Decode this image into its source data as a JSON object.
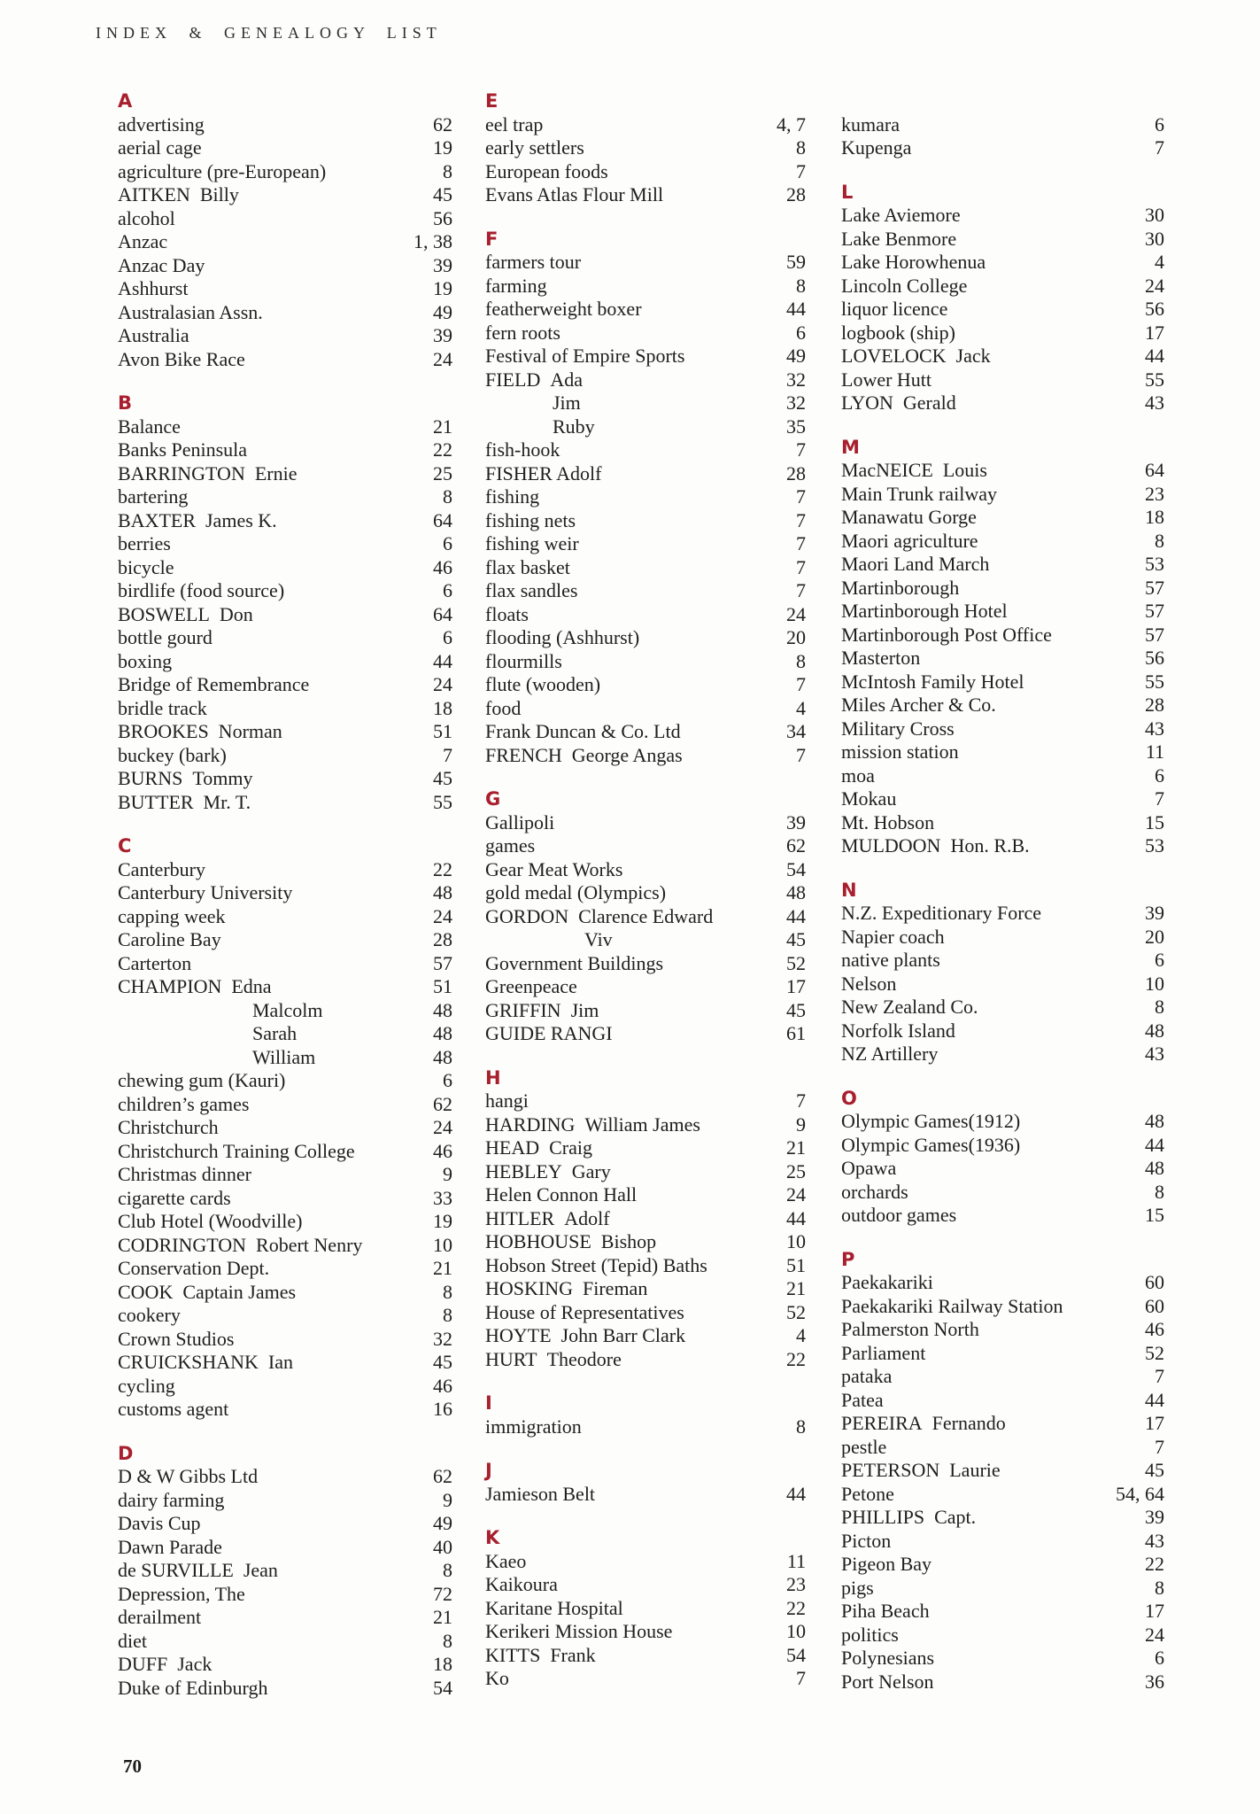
{
  "page": {
    "header": "INDEX & GENEALOGY LIST",
    "page_number": "70",
    "accent_color": "#a81f2e",
    "text_color": "#202020"
  },
  "columns": [
    {
      "sections": [
        {
          "letter": "A",
          "entries": [
            {
              "term": "advertising",
              "page": "62"
            },
            {
              "term": "aerial cage",
              "page": "19"
            },
            {
              "term": "agriculture (pre-European)",
              "page": "8"
            },
            {
              "term": "AITKEN Billy",
              "page": "45"
            },
            {
              "term": "alcohol",
              "page": "56"
            },
            {
              "term": "Anzac",
              "page": "1, 38"
            },
            {
              "term": "Anzac Day",
              "page": "39"
            },
            {
              "term": "Ashhurst",
              "page": "19"
            },
            {
              "term": "Australasian Assn.",
              "page": "49"
            },
            {
              "term": "Australia",
              "page": "39"
            },
            {
              "term": "Avon Bike Race",
              "page": "24"
            }
          ]
        },
        {
          "letter": "B",
          "entries": [
            {
              "term": "Balance",
              "page": "21"
            },
            {
              "term": "Banks Peninsula",
              "page": "22"
            },
            {
              "term": "BARRINGTON Ernie",
              "page": "25"
            },
            {
              "term": "bartering",
              "page": "8"
            },
            {
              "term": "BAXTER James K.",
              "page": "64"
            },
            {
              "term": "berries",
              "page": "6"
            },
            {
              "term": "bicycle",
              "page": "46"
            },
            {
              "term": "birdlife (food source)",
              "page": "6"
            },
            {
              "term": "BOSWELL Don",
              "page": "64"
            },
            {
              "term": "bottle gourd",
              "page": "6"
            },
            {
              "term": "boxing",
              "page": "44"
            },
            {
              "term": "Bridge of Remembrance",
              "page": "24"
            },
            {
              "term": "bridle track",
              "page": "18"
            },
            {
              "term": "BROOKES Norman",
              "page": "51"
            },
            {
              "term": "buckey (bark)",
              "page": "7"
            },
            {
              "term": "BURNS Tommy",
              "page": "45"
            },
            {
              "term": "BUTTER Mr. T.",
              "page": "55"
            }
          ]
        },
        {
          "letter": "C",
          "entries": [
            {
              "term": "Canterbury",
              "page": "22"
            },
            {
              "term": "Canterbury University",
              "page": "48"
            },
            {
              "term": "capping week",
              "page": "24"
            },
            {
              "term": "Caroline Bay",
              "page": "28"
            },
            {
              "term": "Carterton",
              "page": "57"
            },
            {
              "term": "CHAMPION Edna",
              "page": "51"
            },
            {
              "term": "Malcolm",
              "page": "48",
              "indent": 152
            },
            {
              "term": "Sarah",
              "page": "48",
              "indent": 152
            },
            {
              "term": "William",
              "page": "48",
              "indent": 152
            },
            {
              "term": "chewing gum (Kauri)",
              "page": "6"
            },
            {
              "term": "children’s games",
              "page": "62"
            },
            {
              "term": "Christchurch",
              "page": "24"
            },
            {
              "term": "Christchurch Training College",
              "page": "46"
            },
            {
              "term": "Christmas dinner",
              "page": "9"
            },
            {
              "term": "cigarette cards",
              "page": "33"
            },
            {
              "term": "Club Hotel (Woodville)",
              "page": "19"
            },
            {
              "term": "CODRINGTON Robert Nenry",
              "page": "10"
            },
            {
              "term": "Conservation Dept.",
              "page": "21"
            },
            {
              "term": "COOK Captain James",
              "page": "8"
            },
            {
              "term": "cookery",
              "page": "8"
            },
            {
              "term": "Crown Studios",
              "page": "32"
            },
            {
              "term": "CRUICKSHANK Ian",
              "page": "45"
            },
            {
              "term": "cycling",
              "page": "46"
            },
            {
              "term": "customs agent",
              "page": "16"
            }
          ]
        },
        {
          "letter": "D",
          "entries": [
            {
              "term": "D & W Gibbs Ltd",
              "page": "62"
            },
            {
              "term": "dairy farming",
              "page": "9"
            },
            {
              "term": "Davis Cup",
              "page": "49"
            },
            {
              "term": "Dawn Parade",
              "page": "40"
            },
            {
              "term": "de SURVILLE Jean",
              "page": "8"
            },
            {
              "term": "Depression, The",
              "page": "72"
            },
            {
              "term": "derailment",
              "page": "21"
            },
            {
              "term": "diet",
              "page": "8"
            },
            {
              "term": "DUFF Jack",
              "page": "18"
            },
            {
              "term": "Duke of Edinburgh",
              "page": "54"
            }
          ]
        }
      ]
    },
    {
      "sections": [
        {
          "letter": "E",
          "entries": [
            {
              "term": "eel trap",
              "page": "4, 7"
            },
            {
              "term": "early settlers",
              "page": "8"
            },
            {
              "term": "European foods",
              "page": "7"
            },
            {
              "term": "Evans Atlas Flour Mill",
              "page": "28"
            }
          ]
        },
        {
          "letter": "F",
          "entries": [
            {
              "term": "farmers tour",
              "page": "59"
            },
            {
              "term": "farming",
              "page": "8"
            },
            {
              "term": "featherweight boxer",
              "page": "44"
            },
            {
              "term": "fern roots",
              "page": "6"
            },
            {
              "term": "Festival of Empire Sports",
              "page": "49"
            },
            {
              "term": "FIELD Ada",
              "page": "32"
            },
            {
              "term": "Jim",
              "page": "32",
              "indent": 76
            },
            {
              "term": "Ruby",
              "page": "35",
              "indent": 76
            },
            {
              "term": "fish-hook",
              "page": "7"
            },
            {
              "term": "FISHER Adolf",
              "page": "28"
            },
            {
              "term": "fishing",
              "page": "7"
            },
            {
              "term": "fishing nets",
              "page": "7"
            },
            {
              "term": "fishing weir",
              "page": "7"
            },
            {
              "term": "flax basket",
              "page": "7"
            },
            {
              "term": "flax sandles",
              "page": "7"
            },
            {
              "term": "floats",
              "page": "24"
            },
            {
              "term": "flooding (Ashhurst)",
              "page": "20"
            },
            {
              "term": "flourmills",
              "page": "8"
            },
            {
              "term": "flute (wooden)",
              "page": "7"
            },
            {
              "term": "food",
              "page": "4"
            },
            {
              "term": "Frank Duncan & Co. Ltd",
              "page": "34"
            },
            {
              "term": "FRENCH George Angas",
              "page": "7"
            }
          ]
        },
        {
          "letter": "G",
          "entries": [
            {
              "term": "Gallipoli",
              "page": "39"
            },
            {
              "term": "games",
              "page": "62"
            },
            {
              "term": "Gear Meat Works",
              "page": "54"
            },
            {
              "term": "gold medal (Olympics)",
              "page": "48"
            },
            {
              "term": "GORDON Clarence Edward",
              "page": "44"
            },
            {
              "term": "Viv",
              "page": "45",
              "indent": 112
            },
            {
              "term": "Government Buildings",
              "page": "52"
            },
            {
              "term": "Greenpeace",
              "page": "17"
            },
            {
              "term": "GRIFFIN Jim",
              "page": "45"
            },
            {
              "term": "GUIDE RANGI",
              "page": "61"
            }
          ]
        },
        {
          "letter": "H",
          "entries": [
            {
              "term": "hangi",
              "page": "7"
            },
            {
              "term": "HARDING William James",
              "page": "9"
            },
            {
              "term": "HEAD Craig",
              "page": "21"
            },
            {
              "term": "HEBLEY Gary",
              "page": "25"
            },
            {
              "term": "Helen Connon Hall",
              "page": "24"
            },
            {
              "term": "HITLER Adolf",
              "page": "44"
            },
            {
              "term": "HOBHOUSE Bishop",
              "page": "10"
            },
            {
              "term": "Hobson Street (Tepid) Baths",
              "page": "51"
            },
            {
              "term": "HOSKING Fireman",
              "page": "21"
            },
            {
              "term": "House of Representatives",
              "page": "52"
            },
            {
              "term": "HOYTE John Barr Clark",
              "page": "4"
            },
            {
              "term": "HURT Theodore",
              "page": "22"
            }
          ]
        },
        {
          "letter": "I",
          "entries": [
            {
              "term": "immigration",
              "page": "8"
            }
          ]
        },
        {
          "letter": "J",
          "entries": [
            {
              "term": "Jamieson Belt",
              "page": "44"
            }
          ]
        },
        {
          "letter": "K",
          "entries": [
            {
              "term": "Kaeo",
              "page": "11"
            },
            {
              "term": "Kaikoura",
              "page": "23"
            },
            {
              "term": "Karitane Hospital",
              "page": "22"
            },
            {
              "term": "Kerikeri Mission House",
              "page": "10"
            },
            {
              "term": "KITTS Frank",
              "page": "54"
            },
            {
              "term": "Ko",
              "page": "7"
            }
          ]
        }
      ]
    },
    {
      "sections": [
        {
          "letter": "",
          "entries": [
            {
              "term": "kumara",
              "page": "6"
            },
            {
              "term": "Kupenga",
              "page": "7"
            }
          ]
        },
        {
          "letter": "L",
          "entries": [
            {
              "term": "Lake Aviemore",
              "page": "30"
            },
            {
              "term": "Lake Benmore",
              "page": "30"
            },
            {
              "term": "Lake Horowhenua",
              "page": "4"
            },
            {
              "term": "Lincoln College",
              "page": "24"
            },
            {
              "term": "liquor licence",
              "page": "56"
            },
            {
              "term": "logbook (ship)",
              "page": "17"
            },
            {
              "term": "LOVELOCK Jack",
              "page": "44"
            },
            {
              "term": "Lower Hutt",
              "page": "55"
            },
            {
              "term": "LYON Gerald",
              "page": "43"
            }
          ]
        },
        {
          "letter": "M",
          "entries": [
            {
              "term": "MacNEICE Louis",
              "page": "64"
            },
            {
              "term": "Main Trunk railway",
              "page": "23"
            },
            {
              "term": "Manawatu Gorge",
              "page": "18"
            },
            {
              "term": "Maori agriculture",
              "page": "8"
            },
            {
              "term": "Maori Land March",
              "page": "53"
            },
            {
              "term": "Martinborough",
              "page": "57"
            },
            {
              "term": "Martinborough Hotel",
              "page": "57"
            },
            {
              "term": "Martinborough Post Office",
              "page": "57"
            },
            {
              "term": "Masterton",
              "page": "56"
            },
            {
              "term": "McIntosh Family Hotel",
              "page": "55"
            },
            {
              "term": "Miles Archer & Co.",
              "page": "28"
            },
            {
              "term": "Military Cross",
              "page": "43"
            },
            {
              "term": "mission station",
              "page": "11"
            },
            {
              "term": "moa",
              "page": "6"
            },
            {
              "term": "Mokau",
              "page": "7"
            },
            {
              "term": "Mt. Hobson",
              "page": "15"
            },
            {
              "term": "MULDOON Hon. R.B.",
              "page": "53"
            }
          ]
        },
        {
          "letter": "N",
          "entries": [
            {
              "term": "N.Z. Expeditionary Force",
              "page": "39"
            },
            {
              "term": "Napier coach",
              "page": "20"
            },
            {
              "term": "native plants",
              "page": "6"
            },
            {
              "term": "Nelson",
              "page": "10"
            },
            {
              "term": "New Zealand Co.",
              "page": "8"
            },
            {
              "term": "Norfolk Island",
              "page": "48"
            },
            {
              "term": "NZ Artillery",
              "page": "43"
            }
          ]
        },
        {
          "letter": "O",
          "entries": [
            {
              "term": "Olympic Games(1912)",
              "page": "48"
            },
            {
              "term": "Olympic Games(1936)",
              "page": "44"
            },
            {
              "term": "Opawa",
              "page": "48"
            },
            {
              "term": "orchards",
              "page": "8"
            },
            {
              "term": "outdoor games",
              "page": "15"
            }
          ]
        },
        {
          "letter": "P",
          "entries": [
            {
              "term": "Paekakariki",
              "page": "60"
            },
            {
              "term": "Paekakariki Railway Station",
              "page": "60"
            },
            {
              "term": "Palmerston North",
              "page": "46"
            },
            {
              "term": "Parliament",
              "page": "52"
            },
            {
              "term": "pataka",
              "page": "7"
            },
            {
              "term": "Patea",
              "page": "44"
            },
            {
              "term": "PEREIRA Fernando",
              "page": "17"
            },
            {
              "term": "pestle",
              "page": "7"
            },
            {
              "term": "PETERSON Laurie",
              "page": "45"
            },
            {
              "term": "Petone",
              "page": "54, 64"
            },
            {
              "term": "PHILLIPS Capt.",
              "page": "39"
            },
            {
              "term": "Picton",
              "page": "43"
            },
            {
              "term": "Pigeon Bay",
              "page": "22"
            },
            {
              "term": "pigs",
              "page": "8"
            },
            {
              "term": "Piha Beach",
              "page": "17"
            },
            {
              "term": "politics",
              "page": "24"
            },
            {
              "term": "Polynesians",
              "page": "6"
            },
            {
              "term": "Port Nelson",
              "page": "36"
            }
          ]
        }
      ]
    }
  ]
}
